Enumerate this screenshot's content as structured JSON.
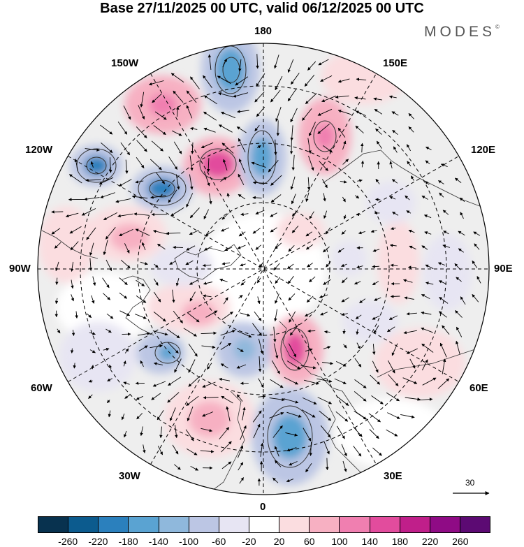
{
  "title": "Base 27/11/2025 00 UTC, valid 06/12/2025 00 UTC",
  "brand": "MODES",
  "brand_mark": "©",
  "longitude_labels": {
    "top": "180",
    "bottom": "0",
    "left": "90W",
    "right": "90E",
    "upper_left_1": "150W",
    "upper_left_2": "120W",
    "upper_right_1": "150E",
    "upper_right_2": "120E",
    "lower_left_1": "60W",
    "lower_left_2": "30W",
    "lower_right_1": "60E",
    "lower_right_2": "30E"
  },
  "vector_scale_label": "30",
  "colorbar": {
    "colors": [
      "#08324f",
      "#0c5b8e",
      "#2b80bd",
      "#5aa3d2",
      "#8fb8dc",
      "#bcc6e4",
      "#e7e5f3",
      "#ffffff",
      "#fbdde0",
      "#f7b0c2",
      "#f07fb0",
      "#e24c9d",
      "#c01f8a",
      "#8f0b85",
      "#5c0a73"
    ],
    "tick_labels": [
      "-260",
      "-220",
      "-180",
      "-140",
      "-100",
      "-60",
      "-20",
      "20",
      "60",
      "100",
      "140",
      "180",
      "220",
      "260"
    ]
  }
}
